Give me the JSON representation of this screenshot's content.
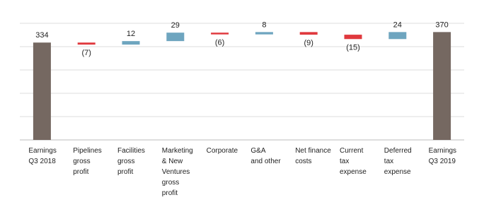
{
  "chart_data": {
    "type": "waterfall",
    "categories": [
      "Earnings\nQ3 2018",
      "Pipelines\ngross\nprofit",
      "Facilities\ngross\nprofit",
      "Marketing\n& New\nVentures\ngross\nprofit",
      "Corporate",
      "G&A\nand other",
      "Net finance\ncosts",
      "Current\ntax\nexpense",
      "Deferred\ntax\nexpense",
      "Earnings\nQ3 2019"
    ],
    "values": [
      334,
      -7,
      12,
      29,
      -6,
      8,
      -9,
      -15,
      24,
      370
    ],
    "value_labels": [
      "334",
      "(7)",
      "12",
      "29",
      "(6)",
      "8",
      "(9)",
      "(15)",
      "24",
      "370"
    ],
    "colors": {
      "total": "#756861",
      "increase": "#6ea5bf",
      "decrease": "#e0393e"
    },
    "ylim": [
      0,
      400
    ],
    "yticks": [
      0,
      80,
      160,
      240,
      320,
      400
    ],
    "grid": true
  }
}
